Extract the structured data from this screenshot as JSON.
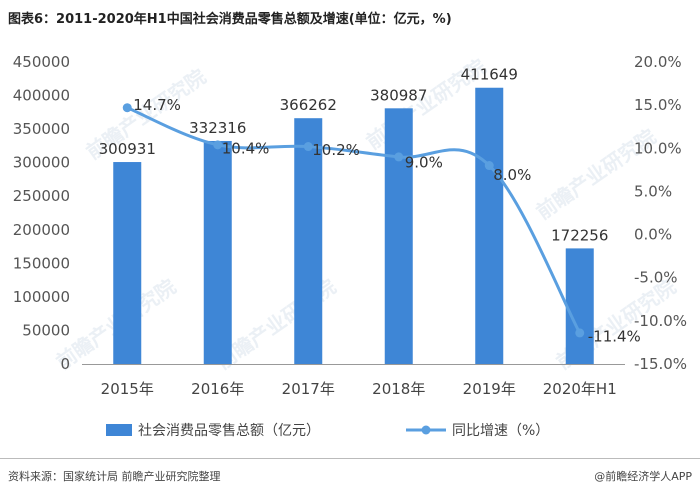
{
  "chart_data": {
    "type": "bar",
    "title": "图表6：2011-2020年H1中国社会消费品零售总额及增速(单位：亿元，%)",
    "categories": [
      "2015年",
      "2016年",
      "2017年",
      "2018年",
      "2019年",
      "2020年H1"
    ],
    "series": [
      {
        "name": "社会消费品零售总额（亿元）",
        "type": "bar",
        "axis": "left",
        "color": "#3e86d6",
        "values": [
          300931,
          332316,
          366262,
          380987,
          411649,
          172256
        ],
        "labels": [
          "300931",
          "332316",
          "366262",
          "380987",
          "411649",
          "172256"
        ]
      },
      {
        "name": "同比增速（%）",
        "type": "line",
        "axis": "right",
        "color": "#5a9fe0",
        "values": [
          14.7,
          10.4,
          10.2,
          9.0,
          8.0,
          -11.4
        ],
        "labels": [
          "14.7%",
          "10.4%",
          "10.2%",
          "9.0%",
          "8.0%",
          "-11.4%"
        ]
      }
    ],
    "y_left": {
      "min": 0,
      "max": 450000,
      "ticks": [
        "0",
        "50000",
        "100000",
        "150000",
        "200000",
        "250000",
        "300000",
        "350000",
        "400000",
        "450000"
      ]
    },
    "y_right": {
      "min": -15,
      "max": 20,
      "ticks": [
        "-15.0%",
        "-10.0%",
        "-5.0%",
        "0.0%",
        "5.0%",
        "10.0%",
        "15.0%",
        "20.0%"
      ]
    },
    "legend": "bottom",
    "grid": false
  },
  "watermark": "前瞻产业研究院",
  "footer": {
    "source": "资料来源：国家统计局 前瞻产业研究院整理",
    "brand": "@前瞻经济学人APP"
  }
}
